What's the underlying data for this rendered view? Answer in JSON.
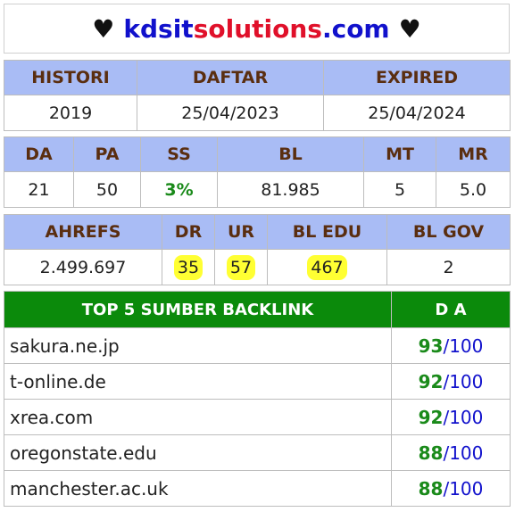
{
  "header": {
    "heart_left": "♥",
    "site_part1": "kdsit",
    "site_part2": "solutions",
    "site_part3": ".com",
    "heart_right": "♥"
  },
  "info": {
    "headers": [
      "HISTORI",
      "DAFTAR",
      "EXPIRED"
    ],
    "values": [
      "2019",
      "25/04/2023",
      "25/04/2024"
    ]
  },
  "metrics": {
    "headers": [
      "DA",
      "PA",
      "SS",
      "BL",
      "MT",
      "MR"
    ],
    "values": [
      "21",
      "50",
      "3%",
      "81.985",
      "5",
      "5.0"
    ]
  },
  "ahrefs": {
    "headers": [
      "AHREFS",
      "DR",
      "UR",
      "BL EDU",
      "BL GOV"
    ],
    "values": [
      "2.499.697",
      "35",
      "57",
      "467",
      "2"
    ]
  },
  "backlinks": {
    "header_source": "TOP 5 SUMBER BACKLINK",
    "header_da": "D A",
    "rows": [
      {
        "domain": "sakura.ne.jp",
        "score": "93",
        "max": "100"
      },
      {
        "domain": "t-online.de",
        "score": "92",
        "max": "100"
      },
      {
        "domain": "xrea.com",
        "score": "92",
        "max": "100"
      },
      {
        "domain": "oregonstate.edu",
        "score": "88",
        "max": "100"
      },
      {
        "domain": "manchester.ac.uk",
        "score": "88",
        "max": "100"
      }
    ]
  },
  "colors": {
    "header_blue": "#a9bcf5",
    "header_green": "#0b8a0b",
    "highlight": "#ffff33",
    "title_blue": "#1111cc",
    "title_red": "#e0102a"
  }
}
